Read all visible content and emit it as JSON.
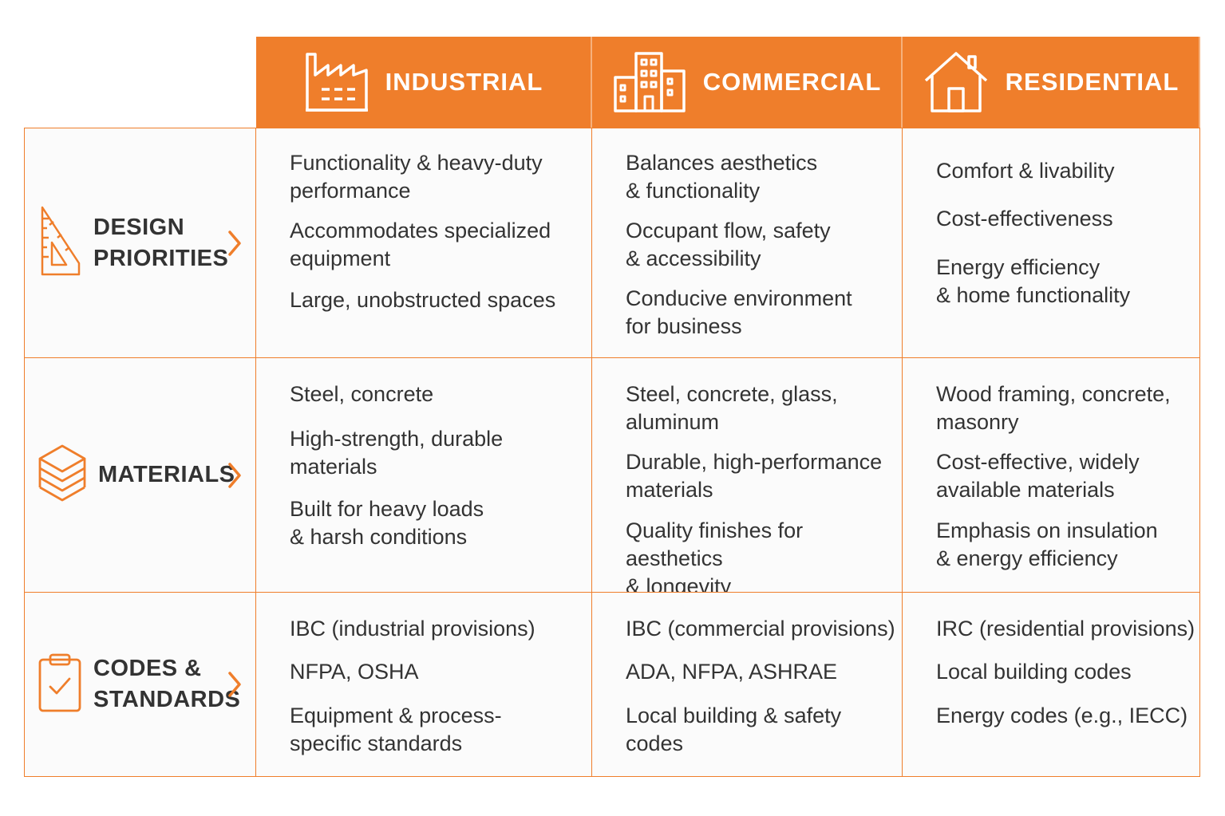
{
  "accent_color": "#ef7e2b",
  "columns": [
    {
      "id": "industrial",
      "title": "INDUSTRIAL",
      "icon": "factory-icon"
    },
    {
      "id": "commercial",
      "title": "COMMERCIAL",
      "icon": "office-building-icon"
    },
    {
      "id": "residential",
      "title": "RESIDENTIAL",
      "icon": "house-icon"
    }
  ],
  "rows": [
    {
      "id": "design",
      "label": "DESIGN\nPRIORITIES",
      "icon": "ruler-triangle-icon",
      "cells": [
        [
          "Functionality & heavy-duty\nperformance",
          "Accommodates specialized\nequipment",
          "Large, unobstructed spaces"
        ],
        [
          "Balances aesthetics\n& functionality",
          "Occupant flow, safety\n& accessibility",
          "Conducive environment\nfor business"
        ],
        [
          "Comfort & livability",
          "Cost-effectiveness",
          "Energy efficiency\n& home functionality"
        ]
      ]
    },
    {
      "id": "materials",
      "label": "MATERIALS",
      "icon": "layers-icon",
      "cells": [
        [
          "Steel, concrete",
          "High-strength, durable\nmaterials",
          "Built for heavy loads\n& harsh conditions"
        ],
        [
          "Steel, concrete, glass,\naluminum",
          "Durable, high-performance\nmaterials",
          "Quality finishes for aesthetics\n& longevity"
        ],
        [
          "Wood framing, concrete,\nmasonry",
          "Cost-effective, widely\navailable materials",
          "Emphasis on insulation\n& energy efficiency"
        ]
      ]
    },
    {
      "id": "codes",
      "label": "CODES &\nSTANDARDS",
      "icon": "clipboard-check-icon",
      "cells": [
        [
          "IBC (industrial provisions)",
          "NFPA, OSHA",
          "Equipment & process-\nspecific standards"
        ],
        [
          "IBC (commercial provisions)",
          "ADA, NFPA, ASHRAE",
          "Local building & safety codes"
        ],
        [
          "IRC (residential provisions)",
          "Local building codes",
          "Energy codes (e.g., IECC)"
        ]
      ]
    }
  ]
}
